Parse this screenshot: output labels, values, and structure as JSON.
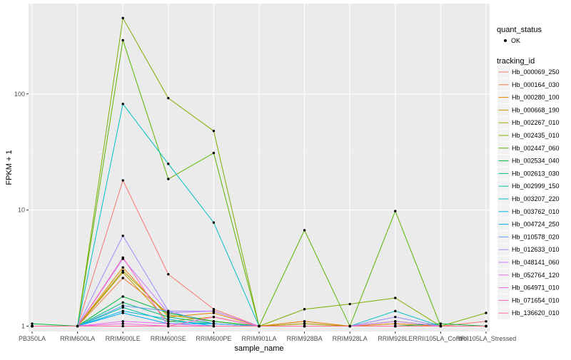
{
  "chart_data": {
    "type": "line",
    "xlabel": "sample_name",
    "ylabel": "FPKM + 1",
    "y_scale": "log10",
    "ylim": [
      0.9,
      600
    ],
    "yticks": [
      1,
      10,
      100
    ],
    "ytick_labels": [
      "1",
      "10",
      "100"
    ],
    "grid": true,
    "legend_position": "right",
    "categories": [
      "PB350LA",
      "RRIM600LA",
      "RRIM600LE",
      "RRIM600SE",
      "RRIM600PE",
      "RRIM901LA",
      "RRIM928BA",
      "RRIM928LA",
      "RRIM928LE",
      "RRII105LA_Control",
      "RRII105LA_Stressed"
    ],
    "shape_legend": {
      "title": "quant_status",
      "items": [
        "OK"
      ]
    },
    "color_legend_title": "tracking_id",
    "series": [
      {
        "name": "Hb_000069_250",
        "color": "#F8766D",
        "values": [
          1.0,
          1.0,
          18.0,
          2.8,
          1.4,
          1.0,
          1.1,
          1.0,
          1.05,
          1.0,
          1.1
        ]
      },
      {
        "name": "Hb_000164_030",
        "color": "#EE8044",
        "values": [
          1.0,
          1.0,
          2.6,
          1.3,
          1.1,
          1.0,
          1.05,
          1.0,
          1.1,
          1.0,
          1.0
        ]
      },
      {
        "name": "Hb_000280_100",
        "color": "#E58700",
        "values": [
          1.0,
          1.0,
          3.2,
          1.2,
          1.3,
          1.0,
          1.1,
          1.0,
          1.05,
          1.0,
          1.0
        ]
      },
      {
        "name": "Hb_000668_190",
        "color": "#C99800",
        "values": [
          1.0,
          1.0,
          2.9,
          1.1,
          1.2,
          1.0,
          1.0,
          1.0,
          1.1,
          1.0,
          1.0
        ]
      },
      {
        "name": "Hb_002267_010",
        "color": "#A3A500",
        "values": [
          1.0,
          1.0,
          3.0,
          1.25,
          1.1,
          1.0,
          1.05,
          1.0,
          1.0,
          1.0,
          1.0
        ]
      },
      {
        "name": "Hb_002435_010",
        "color": "#7CAE00",
        "values": [
          1.0,
          1.0,
          450.0,
          92.0,
          48.0,
          1.0,
          1.4,
          1.55,
          1.75,
          1.0,
          1.3
        ]
      },
      {
        "name": "Hb_002447_060",
        "color": "#5BB300",
        "values": [
          1.0,
          1.0,
          290.0,
          18.5,
          31.0,
          1.0,
          6.7,
          1.0,
          9.8,
          1.0,
          1.0
        ]
      },
      {
        "name": "Hb_002534_040",
        "color": "#00BA38",
        "values": [
          1.05,
          1.0,
          1.8,
          1.3,
          1.1,
          1.0,
          1.0,
          1.0,
          1.0,
          1.05,
          1.0
        ]
      },
      {
        "name": "Hb_002613_030",
        "color": "#00BF74",
        "values": [
          1.0,
          1.0,
          1.6,
          1.2,
          1.05,
          1.0,
          1.0,
          1.0,
          1.0,
          1.0,
          1.0
        ]
      },
      {
        "name": "Hb_002999_150",
        "color": "#00C19F",
        "values": [
          1.0,
          1.0,
          1.45,
          1.1,
          1.05,
          1.0,
          1.0,
          1.0,
          1.0,
          1.0,
          1.0
        ]
      },
      {
        "name": "Hb_003207_220",
        "color": "#00BFC4",
        "values": [
          1.0,
          1.0,
          82.0,
          25.0,
          7.8,
          1.0,
          1.0,
          1.0,
          1.35,
          1.0,
          1.0
        ]
      },
      {
        "name": "Hb_003762_010",
        "color": "#00B8E7",
        "values": [
          1.0,
          1.0,
          1.35,
          1.15,
          1.0,
          1.0,
          1.0,
          1.0,
          1.0,
          1.0,
          1.0
        ]
      },
      {
        "name": "Hb_004724_250",
        "color": "#00A9FF",
        "values": [
          1.0,
          1.0,
          1.3,
          1.05,
          1.05,
          1.0,
          1.0,
          1.0,
          1.0,
          1.0,
          1.0
        ]
      },
      {
        "name": "Hb_010578_020",
        "color": "#619CFF",
        "values": [
          1.0,
          1.0,
          1.5,
          1.35,
          1.05,
          1.0,
          1.0,
          1.0,
          1.0,
          1.0,
          1.0
        ]
      },
      {
        "name": "Hb_012633_010",
        "color": "#9F8CFF",
        "values": [
          1.0,
          1.0,
          6.0,
          1.35,
          1.35,
          1.0,
          1.0,
          1.0,
          1.2,
          1.0,
          1.0
        ]
      },
      {
        "name": "Hb_048141_060",
        "color": "#C77CFF",
        "values": [
          1.0,
          1.0,
          3.8,
          1.3,
          1.35,
          1.0,
          1.0,
          1.0,
          1.1,
          1.0,
          1.0
        ]
      },
      {
        "name": "Hb_052764_120",
        "color": "#E76BF3",
        "values": [
          1.0,
          1.0,
          1.1,
          1.05,
          1.0,
          1.0,
          1.0,
          1.0,
          1.0,
          1.0,
          1.0
        ]
      },
      {
        "name": "Hb_064971_010",
        "color": "#F564E3",
        "values": [
          1.0,
          1.0,
          1.05,
          1.0,
          1.0,
          1.0,
          1.0,
          1.0,
          1.0,
          1.0,
          1.0
        ]
      },
      {
        "name": "Hb_071654_010",
        "color": "#FF62BC",
        "values": [
          1.0,
          1.0,
          3.9,
          1.0,
          1.2,
          1.0,
          1.0,
          1.0,
          1.0,
          1.0,
          1.0
        ]
      },
      {
        "name": "Hb_136620_010",
        "color": "#FF6C91",
        "values": [
          1.0,
          1.0,
          1.0,
          1.0,
          1.0,
          1.0,
          1.0,
          1.0,
          1.0,
          1.0,
          1.0
        ]
      }
    ]
  }
}
